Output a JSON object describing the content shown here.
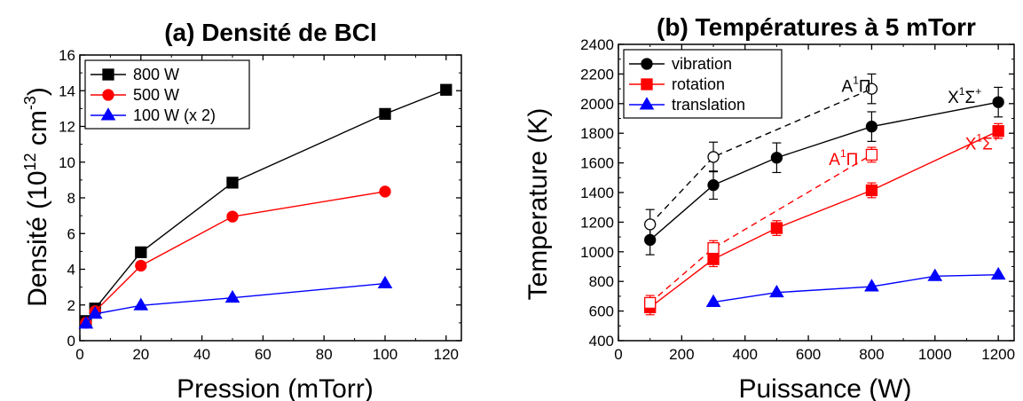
{
  "chart_data": [
    {
      "type": "line",
      "title": "(a) Densité de BCl",
      "xlabel": "Pression (mTorr)",
      "ylabel_prefix": "Densité (10",
      "ylabel_exp": "12",
      "ylabel_unit": " cm",
      "ylabel_unit_exp": "-3",
      "ylabel_suffix": ")",
      "xlim": [
        0,
        125
      ],
      "ylim": [
        0,
        16
      ],
      "xticks": [
        0,
        20,
        40,
        60,
        80,
        100,
        120
      ],
      "yticks": [
        0,
        2,
        4,
        6,
        8,
        10,
        12,
        14,
        16
      ],
      "grid": false,
      "legend_position": "top-left",
      "series": [
        {
          "name": "800 W",
          "color": "#000000",
          "marker": "square",
          "x": [
            2,
            5,
            20,
            50,
            100,
            120
          ],
          "y": [
            1.1,
            1.8,
            4.95,
            8.85,
            12.7,
            14.05
          ]
        },
        {
          "name": "500 W",
          "color": "#ff0000",
          "marker": "circle",
          "x": [
            2,
            5,
            20,
            50,
            100
          ],
          "y": [
            1.0,
            1.65,
            4.2,
            6.95,
            8.35
          ]
        },
        {
          "name": "100 W (x 2)",
          "color": "#0000ff",
          "marker": "triangle",
          "x": [
            2,
            5,
            20,
            50,
            100
          ],
          "y": [
            0.95,
            1.5,
            1.97,
            2.4,
            3.2
          ]
        }
      ]
    },
    {
      "type": "line",
      "title": "(b) Températures à 5 mTorr",
      "xlabel": "Puissance (W)",
      "ylabel": "Temperature (K)",
      "xlim": [
        0,
        1250
      ],
      "ylim": [
        400,
        2400
      ],
      "xticks": [
        0,
        200,
        400,
        600,
        800,
        1000,
        1200
      ],
      "yticks": [
        400,
        600,
        800,
        1000,
        1200,
        1400,
        1600,
        1800,
        2000,
        2200,
        2400
      ],
      "grid": false,
      "legend_position": "top-left",
      "series": [
        {
          "name": "vibration",
          "color": "#000000",
          "marker": "circle",
          "filled": true,
          "dashed": false,
          "x": [
            100,
            300,
            500,
            800,
            1200
          ],
          "y": [
            1080,
            1450,
            1635,
            1845,
            2010
          ],
          "err": [
            100,
            95,
            100,
            100,
            100
          ]
        },
        {
          "name": "rotation",
          "color": "#ff0000",
          "marker": "square",
          "filled": true,
          "dashed": false,
          "x": [
            100,
            300,
            500,
            800,
            1200
          ],
          "y": [
            625,
            950,
            1160,
            1415,
            1815
          ],
          "err": [
            50,
            50,
            50,
            50,
            50
          ]
        },
        {
          "name": "translation",
          "color": "#0000ff",
          "marker": "triangle",
          "filled": true,
          "dashed": false,
          "x": [
            300,
            500,
            800,
            1000,
            1200
          ],
          "y": [
            660,
            725,
            765,
            835,
            845
          ],
          "err": [
            0,
            0,
            0,
            0,
            0
          ]
        },
        {
          "name": "",
          "color": "#000000",
          "marker": "circle",
          "filled": false,
          "dashed": true,
          "x": [
            100,
            300,
            800
          ],
          "y": [
            1185,
            1640,
            2100
          ],
          "err": [
            100,
            100,
            100
          ]
        },
        {
          "name": "",
          "color": "#ff0000",
          "marker": "square",
          "filled": false,
          "dashed": true,
          "x": [
            100,
            300,
            800
          ],
          "y": [
            655,
            1025,
            1655
          ],
          "err": [
            50,
            50,
            50
          ]
        }
      ],
      "annotations": [
        {
          "main": "A",
          "sup": "1",
          "tail": "Π",
          "tail_sup": "",
          "color": "#000000",
          "x": 705,
          "y": 2080
        },
        {
          "main": "X",
          "sup": "1",
          "tail": "Σ",
          "tail_sup": "+",
          "color": "#000000",
          "x": 1040,
          "y": 2005
        },
        {
          "main": "A",
          "sup": "1",
          "tail": "Π",
          "tail_sup": "",
          "color": "#ff0000",
          "x": 665,
          "y": 1585
        },
        {
          "main": "X",
          "sup": "1",
          "tail": "Σ",
          "tail_sup": "+",
          "color": "#ff0000",
          "x": 1095,
          "y": 1690
        }
      ]
    }
  ]
}
